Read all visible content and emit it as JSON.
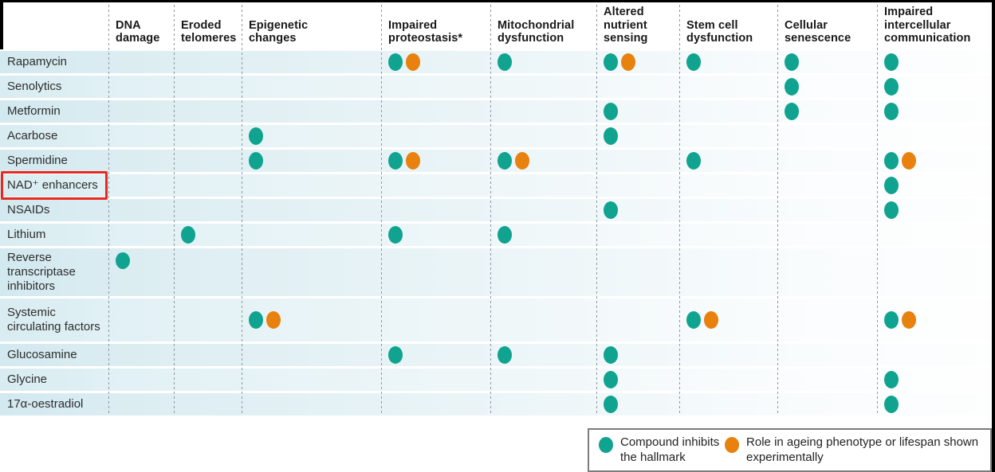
{
  "chart_data": {
    "type": "table",
    "title": "",
    "columns": [
      "DNA\ndamage",
      "Eroded\ntelomeres",
      "Epigenetic\nchanges",
      "Impaired\nproteostasis*",
      "Mitochondrial\ndysfunction",
      "Altered\nnutrient\nsensing",
      "Stem cell\ndysfunction",
      "Cellular\nsenescence",
      "Impaired\nintercellular\ncommunication"
    ],
    "rows": [
      {
        "name": "Rapamycin",
        "marks": [
          {
            "col": 3,
            "dots": [
              "inhibits",
              "experimental"
            ]
          },
          {
            "col": 4,
            "dots": [
              "inhibits"
            ]
          },
          {
            "col": 5,
            "dots": [
              "inhibits",
              "experimental"
            ]
          },
          {
            "col": 6,
            "dots": [
              "inhibits"
            ]
          },
          {
            "col": 7,
            "dots": [
              "inhibits"
            ]
          },
          {
            "col": 8,
            "dots": [
              "inhibits"
            ]
          }
        ]
      },
      {
        "name": "Senolytics",
        "marks": [
          {
            "col": 7,
            "dots": [
              "inhibits"
            ]
          },
          {
            "col": 8,
            "dots": [
              "inhibits"
            ]
          }
        ]
      },
      {
        "name": "Metformin",
        "marks": [
          {
            "col": 5,
            "dots": [
              "inhibits"
            ]
          },
          {
            "col": 7,
            "dots": [
              "inhibits"
            ]
          },
          {
            "col": 8,
            "dots": [
              "inhibits"
            ]
          }
        ]
      },
      {
        "name": "Acarbose",
        "marks": [
          {
            "col": 2,
            "dots": [
              "inhibits"
            ]
          },
          {
            "col": 5,
            "dots": [
              "inhibits"
            ]
          }
        ]
      },
      {
        "name": "Spermidine",
        "marks": [
          {
            "col": 2,
            "dots": [
              "inhibits"
            ]
          },
          {
            "col": 3,
            "dots": [
              "inhibits",
              "experimental"
            ]
          },
          {
            "col": 4,
            "dots": [
              "inhibits",
              "experimental"
            ]
          },
          {
            "col": 6,
            "dots": [
              "inhibits"
            ]
          },
          {
            "col": 8,
            "dots": [
              "inhibits",
              "experimental"
            ]
          }
        ]
      },
      {
        "name": "NAD⁺ enhancers",
        "highlighted": true,
        "marks": [
          {
            "col": 8,
            "dots": [
              "inhibits"
            ]
          }
        ]
      },
      {
        "name": "NSAIDs",
        "marks": [
          {
            "col": 5,
            "dots": [
              "inhibits"
            ]
          },
          {
            "col": 8,
            "dots": [
              "inhibits"
            ]
          }
        ]
      },
      {
        "name": "Lithium",
        "marks": [
          {
            "col": 1,
            "dots": [
              "inhibits"
            ]
          },
          {
            "col": 3,
            "dots": [
              "inhibits"
            ]
          },
          {
            "col": 4,
            "dots": [
              "inhibits"
            ]
          }
        ]
      },
      {
        "name": "Reverse transcriptase inhibitors",
        "marks": [
          {
            "col": 0,
            "dots": [
              "inhibits"
            ]
          }
        ]
      },
      {
        "name": "Systemic circulating factors",
        "marks": [
          {
            "col": 2,
            "dots": [
              "inhibits",
              "experimental"
            ]
          },
          {
            "col": 6,
            "dots": [
              "inhibits",
              "experimental"
            ]
          },
          {
            "col": 8,
            "dots": [
              "inhibits",
              "experimental"
            ]
          }
        ]
      },
      {
        "name": "Glucosamine",
        "marks": [
          {
            "col": 3,
            "dots": [
              "inhibits"
            ]
          },
          {
            "col": 4,
            "dots": [
              "inhibits"
            ]
          },
          {
            "col": 5,
            "dots": [
              "inhibits"
            ]
          }
        ]
      },
      {
        "name": "Glycine",
        "marks": [
          {
            "col": 5,
            "dots": [
              "inhibits"
            ]
          },
          {
            "col": 8,
            "dots": [
              "inhibits"
            ]
          }
        ]
      },
      {
        "name": "17α-oestradiol",
        "marks": [
          {
            "col": 5,
            "dots": [
              "inhibits"
            ]
          },
          {
            "col": 8,
            "dots": [
              "inhibits"
            ]
          }
        ]
      }
    ],
    "legend_position": "bottom-right",
    "grid": "dashed-vertical"
  },
  "legend": {
    "items": [
      {
        "type": "inhibits",
        "color": "#10a38f",
        "label": "Compound inhibits the hallmark"
      },
      {
        "type": "experimental",
        "color": "#e8810d",
        "label": "Role in ageing phenotype or lifespan shown experimentally"
      }
    ]
  },
  "annotation": {
    "highlighted_row": "NAD⁺ enhancers",
    "highlight_color": "#e62a22"
  },
  "colors": {
    "inhibits": "#10a38f",
    "experimental": "#e8810d",
    "row_tint": "#d2e9ef",
    "separator": "#8e989b"
  }
}
